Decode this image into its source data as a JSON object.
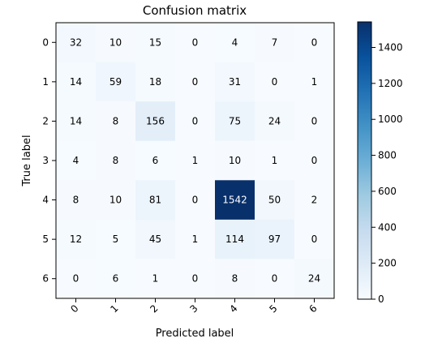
{
  "chart_data": {
    "type": "heatmap",
    "title": "Confusion matrix",
    "xlabel": "Predicted label",
    "ylabel": "True label",
    "x_categories": [
      "0",
      "1",
      "2",
      "3",
      "4",
      "5",
      "6"
    ],
    "y_categories": [
      "0",
      "1",
      "2",
      "3",
      "4",
      "5",
      "6"
    ],
    "values": [
      [
        32,
        10,
        15,
        0,
        4,
        7,
        0
      ],
      [
        14,
        59,
        18,
        0,
        31,
        0,
        1
      ],
      [
        14,
        8,
        156,
        0,
        75,
        24,
        0
      ],
      [
        4,
        8,
        6,
        1,
        10,
        1,
        0
      ],
      [
        8,
        10,
        81,
        0,
        1542,
        50,
        2
      ],
      [
        12,
        5,
        45,
        1,
        114,
        97,
        0
      ],
      [
        0,
        6,
        1,
        0,
        8,
        0,
        24
      ]
    ],
    "colormap": "Blues",
    "color_low": "#f7fbff",
    "color_high": "#08306b",
    "colorbar": {
      "range": [
        0,
        1542
      ],
      "ticks": [
        0,
        200,
        400,
        600,
        800,
        1000,
        1200,
        1400
      ],
      "placement": "right"
    },
    "text_color_dark": "#000000",
    "text_color_light": "#ffffff",
    "grid": false
  }
}
